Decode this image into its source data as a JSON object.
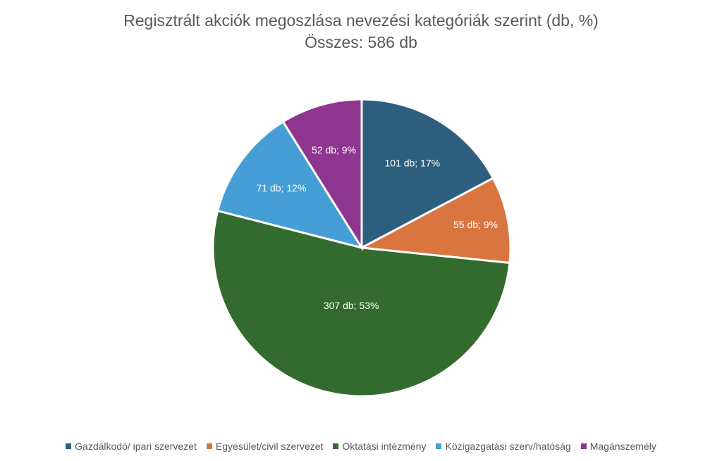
{
  "chart_data": {
    "type": "pie",
    "title": "Regisztrált akciók megoszlása nevezési kategóriák szerint (db, %)",
    "subtitle": "Összes: 586 db",
    "legend_position": "bottom",
    "slices": [
      {
        "name": "Gazdálkodó/ ipari szervezet",
        "value": 101,
        "percent": 17,
        "label": "101 db; 17%",
        "color": "#2E5E7E"
      },
      {
        "name": "Egyesület/civil szervezet",
        "value": 55,
        "percent": 9,
        "label": "55 db; 9%",
        "color": "#D97640"
      },
      {
        "name": "Oktatási intézmény",
        "value": 307,
        "percent": 53,
        "label": "307 db; 53%",
        "color": "#336B2E"
      },
      {
        "name": "Közigazgatási szerv/hatóság",
        "value": 71,
        "percent": 12,
        "label": "71 db; 12%",
        "color": "#459ED6"
      },
      {
        "name": "Magánszemély",
        "value": 52,
        "percent": 9,
        "label": "52 db; 9%",
        "color": "#8E3590"
      }
    ]
  }
}
